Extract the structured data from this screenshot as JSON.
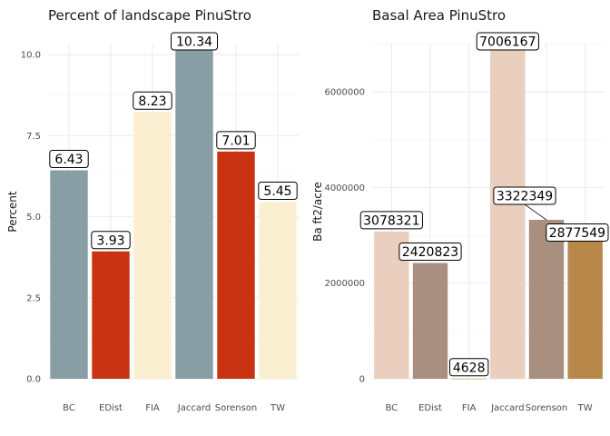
{
  "chart_data": [
    {
      "type": "bar",
      "title": "Percent of landscape  PinuStro",
      "xlabel": "",
      "ylabel": "Percent",
      "categories": [
        "BC",
        "EDist",
        "FIA",
        "Jaccard",
        "Sorenson",
        "TW"
      ],
      "values": [
        6.43,
        3.93,
        8.23,
        10.34,
        7.01,
        5.45
      ],
      "data_labels": [
        "6.43",
        "3.93",
        "8.23",
        "10.34",
        "7.01",
        "5.45"
      ],
      "ylim": [
        0,
        10.34
      ],
      "yticks": [
        0,
        2.5,
        5,
        7.5,
        10
      ],
      "ytick_labels": [
        "0.0",
        "2.5",
        "5.0",
        "7.5",
        "10.0"
      ],
      "colors": [
        "#899DA4",
        "#C93312",
        "#FAEFD1",
        "#899DA4",
        "#C93312",
        "#FAEFD1"
      ],
      "grid": true,
      "legend": "none"
    },
    {
      "type": "bar",
      "title": "Basal Area  PinuStro",
      "xlabel": "",
      "ylabel": "Ba ft2/acre",
      "categories": [
        "BC",
        "EDist",
        "FIA",
        "Jaccard",
        "Sorenson",
        "TW"
      ],
      "values": [
        3078321,
        2420823,
        4628,
        7006167,
        3322349,
        2877549
      ],
      "data_labels": [
        "3078321",
        "2420823",
        "4628",
        "7006167",
        "3322349",
        "2877549"
      ],
      "ylim": [
        0,
        7006167
      ],
      "yticks": [
        0,
        2000000,
        4000000,
        6000000
      ],
      "ytick_labels": [
        "0",
        "2000000",
        "4000000",
        "6000000"
      ],
      "colors": [
        "#EACFBE",
        "#A88F80",
        "#D8B07A",
        "#EACFBE",
        "#A88F80",
        "#B8884A"
      ],
      "grid": true,
      "legend": "none"
    }
  ]
}
